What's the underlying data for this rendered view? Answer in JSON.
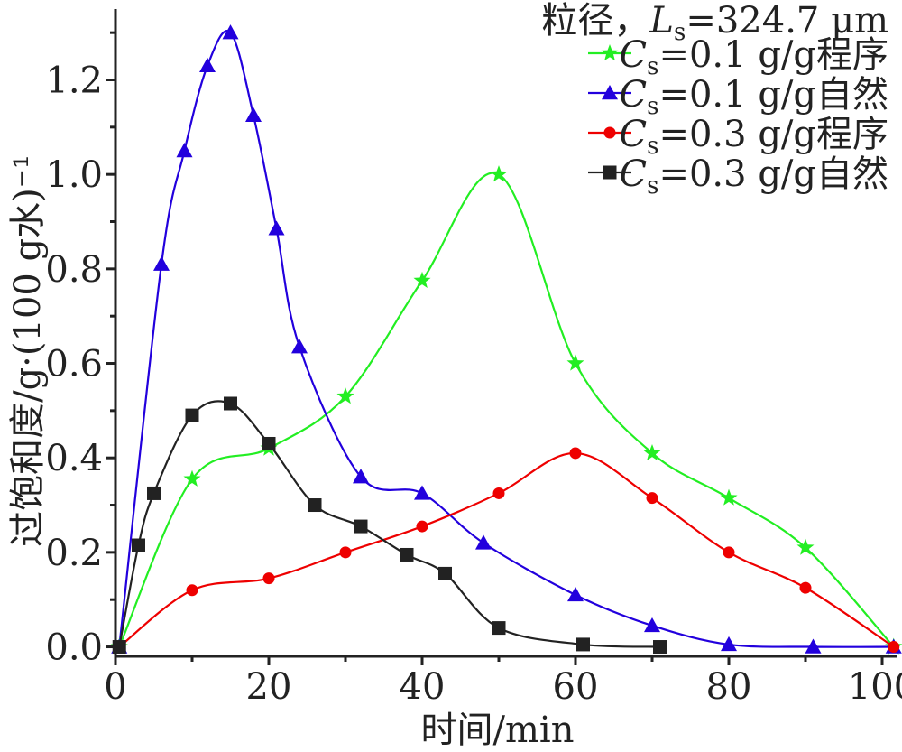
{
  "chart_data": {
    "type": "line",
    "xlabel": "时间/min",
    "ylabel": "过饱和度/g·(100 g水)⁻¹",
    "xlim": [
      0,
      102
    ],
    "ylim": [
      -0.02,
      1.35
    ],
    "xticks": [
      0,
      20,
      40,
      60,
      80,
      100
    ],
    "xtick_labels": [
      "0",
      "20",
      "40",
      "60",
      "80",
      "100"
    ],
    "yticks": [
      0.0,
      0.2,
      0.4,
      0.6,
      0.8,
      1.0,
      1.2
    ],
    "ytick_labels": [
      "0.0",
      "0.2",
      "0.4",
      "0.6",
      "0.8",
      "1.0",
      "1.2"
    ],
    "legend": {
      "placement": "top-right",
      "title": "粒径，Ls=324.7 μm",
      "title_parts": {
        "prefix": "粒径，",
        "var": "L",
        "sub": "s",
        "suffix": "=324.7 μm"
      }
    },
    "series": [
      {
        "name": "Cs=0.1 g/g程序",
        "label_parts": {
          "var": "C",
          "sub": "s",
          "suffix": "=0.1 g/g程序"
        },
        "color": "#22ee22",
        "marker": "star",
        "x": [
          0.5,
          10,
          20,
          30,
          40,
          50,
          60,
          70,
          80,
          90,
          101.5
        ],
        "y": [
          0.0,
          0.355,
          0.42,
          0.53,
          0.775,
          1.0,
          0.6,
          0.41,
          0.315,
          0.21,
          0.0
        ]
      },
      {
        "name": "Cs=0.1 g/g自然",
        "label_parts": {
          "var": "C",
          "sub": "s",
          "suffix": "=0.1 g/g自然"
        },
        "color": "#2200dd",
        "marker": "triangle",
        "x": [
          0.5,
          6,
          9,
          12,
          15,
          18,
          21,
          24,
          32,
          40,
          48,
          60,
          70,
          80,
          91,
          101.5
        ],
        "y": [
          0.0,
          0.81,
          1.05,
          1.23,
          1.3,
          1.125,
          0.885,
          0.635,
          0.36,
          0.325,
          0.22,
          0.11,
          0.045,
          0.005,
          0.0,
          0.0
        ]
      },
      {
        "name": "Cs=0.3 g/g程序",
        "label_parts": {
          "var": "C",
          "sub": "s",
          "suffix": "=0.3 g/g程序"
        },
        "color": "#ee0000",
        "marker": "circle",
        "x": [
          0.5,
          10,
          20,
          30,
          40,
          50,
          60,
          70,
          80,
          90,
          101.5
        ],
        "y": [
          0.0,
          0.12,
          0.145,
          0.2,
          0.255,
          0.325,
          0.41,
          0.315,
          0.2,
          0.125,
          0.0
        ]
      },
      {
        "name": "Cs=0.3 g/g自然",
        "label_parts": {
          "var": "C",
          "sub": "s",
          "suffix": "=0.3 g/g自然"
        },
        "color": "#222222",
        "marker": "square",
        "x": [
          0.5,
          3,
          5,
          10,
          15,
          20,
          26,
          32,
          38,
          43,
          50,
          61,
          71
        ],
        "y": [
          0.0,
          0.215,
          0.325,
          0.49,
          0.515,
          0.43,
          0.3,
          0.255,
          0.195,
          0.155,
          0.04,
          0.005,
          0.0
        ]
      }
    ]
  }
}
